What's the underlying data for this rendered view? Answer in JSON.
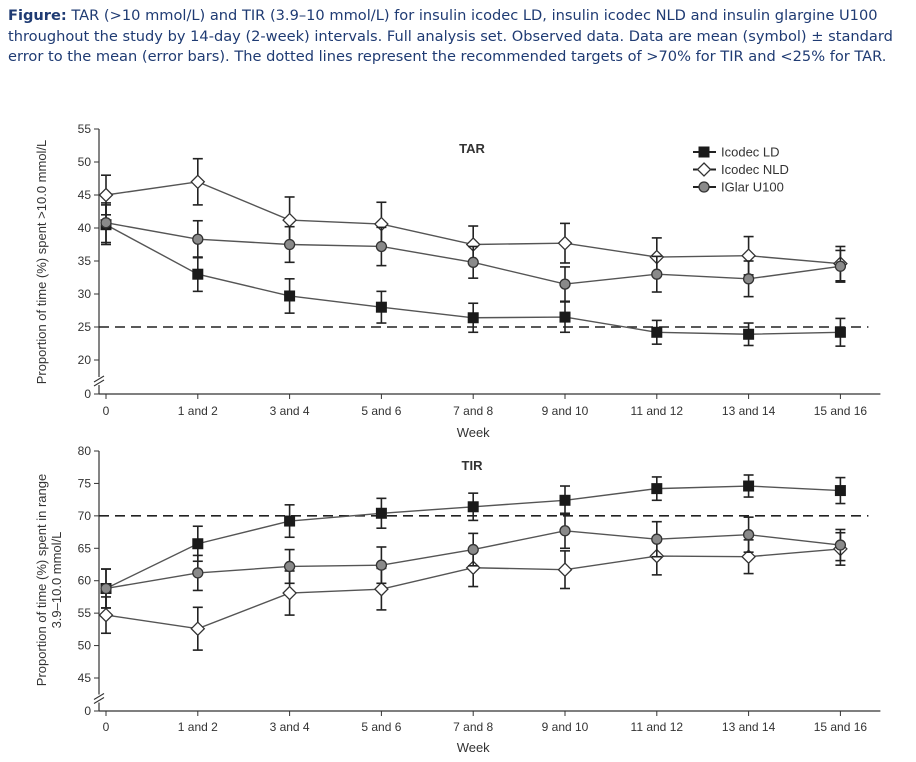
{
  "caption": {
    "label": "Figure:",
    "text": "TAR (>10 mmol/L) and TIR (3.9–10 mmol/L) for insulin icodec LD, insulin icodec NLD and insulin glargine U100 throughout the study by 14-day (2-week) intervals. Full analysis set. Observed data. Data are mean (symbol) ± standard error to the mean (error bars). The dotted lines represent the recommended targets of >70% for TIR and <25% for TAR."
  },
  "legend": [
    {
      "name": "Icodec LD",
      "marker": "square",
      "color": "#222222"
    },
    {
      "name": "Icodec NLD",
      "marker": "diamond",
      "color": "#ffffff"
    },
    {
      "name": "IGlar U100",
      "marker": "circle",
      "color": "#8a8a8a"
    }
  ],
  "chart_data": [
    {
      "type": "line",
      "title": "TAR",
      "xlabel": "Week",
      "ylabel": "Proportion of time (%) spent >10.0 mmol/L",
      "categories": [
        "0",
        "1 and 2",
        "3 and 4",
        "5 and 6",
        "7 and 8",
        "9 and 10",
        "11 and 12",
        "13 and 14",
        "15 and 16"
      ],
      "yticks": [
        0,
        20,
        25,
        30,
        35,
        40,
        45,
        50,
        55
      ],
      "ylim": [
        20,
        55
      ],
      "axis_break": true,
      "reference_line": 25,
      "grid": false,
      "legend_position": "top-right",
      "series": [
        {
          "name": "Icodec LD",
          "values": [
            40.5,
            33,
            29.7,
            28,
            26.4,
            26.5,
            24.2,
            23.9,
            24.2
          ],
          "se": [
            3,
            2.6,
            2.6,
            2.4,
            2.2,
            2.3,
            1.8,
            1.7,
            2.1
          ]
        },
        {
          "name": "Icodec NLD",
          "values": [
            45,
            47,
            41.2,
            40.6,
            37.5,
            37.7,
            35.6,
            35.8,
            34.6
          ],
          "se": [
            3,
            3.5,
            3.5,
            3.3,
            2.8,
            3,
            2.9,
            2.9,
            2.6
          ]
        },
        {
          "name": "IGlar U100",
          "values": [
            40.8,
            38.3,
            37.5,
            37.2,
            34.8,
            31.5,
            33,
            32.3,
            34.2
          ],
          "se": [
            3,
            2.8,
            2.7,
            2.9,
            2.4,
            2.6,
            2.7,
            2.7,
            2.4
          ]
        }
      ]
    },
    {
      "type": "line",
      "title": "TIR",
      "xlabel": "Week",
      "ylabel": "Proportion of time (%) spent in range 3.9–10.0 mmol/L",
      "categories": [
        "0",
        "1 and 2",
        "3 and 4",
        "5 and 6",
        "7 and 8",
        "9 and 10",
        "11 and 12",
        "13 and 14",
        "15 and 16"
      ],
      "yticks": [
        0,
        45,
        50,
        55,
        60,
        65,
        70,
        75,
        80
      ],
      "ylim": [
        45,
        80
      ],
      "axis_break": true,
      "reference_line": 70,
      "grid": false,
      "series": [
        {
          "name": "Icodec LD",
          "values": [
            58.8,
            65.7,
            69.2,
            70.4,
            71.4,
            72.4,
            74.2,
            74.6,
            73.9
          ],
          "se": [
            3,
            2.7,
            2.5,
            2.3,
            2.1,
            2.2,
            1.8,
            1.7,
            2
          ]
        },
        {
          "name": "Icodec NLD",
          "values": [
            54.7,
            52.6,
            58.1,
            58.7,
            62,
            61.7,
            63.8,
            63.7,
            64.9
          ],
          "se": [
            2.8,
            3.3,
            3.4,
            3.2,
            2.9,
            2.9,
            2.9,
            2.6,
            2.5
          ]
        },
        {
          "name": "IGlar U100",
          "values": [
            58.8,
            61.2,
            62.2,
            62.4,
            64.8,
            67.7,
            66.4,
            67.1,
            65.5
          ],
          "se": [
            3,
            2.7,
            2.6,
            2.8,
            2.5,
            2.7,
            2.7,
            2.7,
            2.4
          ]
        }
      ]
    }
  ]
}
